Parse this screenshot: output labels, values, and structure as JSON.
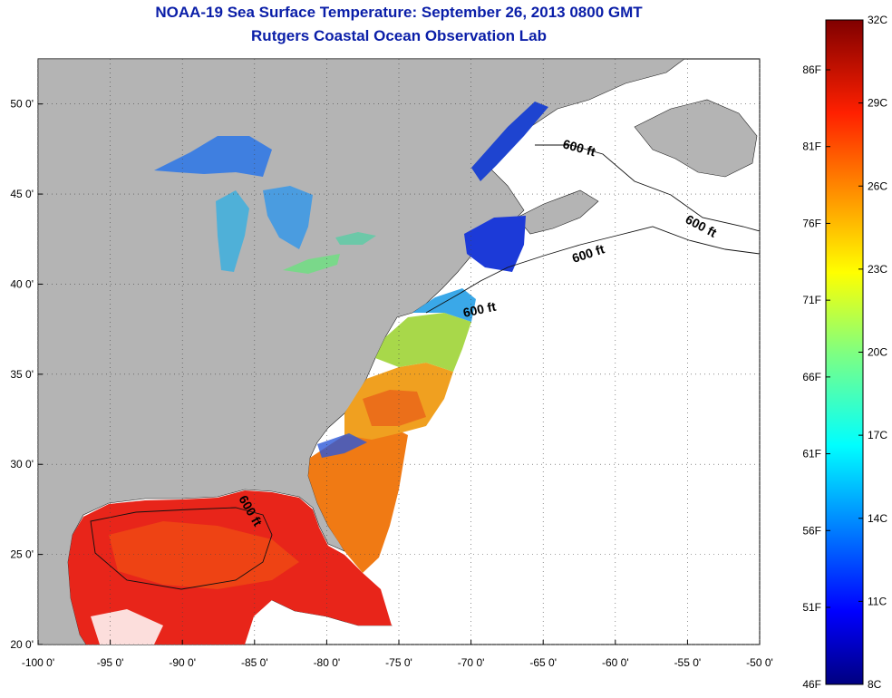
{
  "title": "NOAA-19 Sea Surface Temperature:  September 26, 2013 0800 GMT",
  "subtitle": "Rutgers Coastal Ocean Observation Lab",
  "map": {
    "lon_range": [
      -100,
      -50
    ],
    "lat_range": [
      20,
      52.5
    ],
    "lon_ticks": [
      {
        "value": -100,
        "label": "-100 0'"
      },
      {
        "value": -95,
        "label": "-95 0'"
      },
      {
        "value": -90,
        "label": "-90 0'"
      },
      {
        "value": -85,
        "label": "-85 0'"
      },
      {
        "value": -80,
        "label": "-80 0'"
      },
      {
        "value": -75,
        "label": "-75 0'"
      },
      {
        "value": -70,
        "label": "-70 0'"
      },
      {
        "value": -65,
        "label": "-65 0'"
      },
      {
        "value": -60,
        "label": "-60 0'"
      },
      {
        "value": -55,
        "label": "-55 0'"
      },
      {
        "value": -50,
        "label": "-50 0'"
      }
    ],
    "lat_ticks": [
      {
        "value": 20,
        "label": "20 0'"
      },
      {
        "value": 25,
        "label": "25 0'"
      },
      {
        "value": 30,
        "label": "30 0'"
      },
      {
        "value": 35,
        "label": "35 0'"
      },
      {
        "value": 40,
        "label": "40 0'"
      },
      {
        "value": 45,
        "label": "45 0'"
      },
      {
        "value": 50,
        "label": "50 0'"
      }
    ],
    "contour_labels": [
      "600 ft",
      "600 ft",
      "600 ft",
      "600 ft",
      "600 ft"
    ],
    "colors": {
      "land": "#b4b4b4",
      "ocean_no_data": "#ffffff",
      "gulf_sst": "#e8251a",
      "great_lakes": "#3f7fe0"
    }
  },
  "colorbar": {
    "range_c": [
      8,
      32
    ],
    "celsius_labels": [
      "32C",
      "29C",
      "26C",
      "23C",
      "20C",
      "17C",
      "14C",
      "11C",
      "8C"
    ],
    "fahrenheit_labels": [
      "86F",
      "81F",
      "76F",
      "71F",
      "66F",
      "61F",
      "56F",
      "51F",
      "46F"
    ]
  }
}
